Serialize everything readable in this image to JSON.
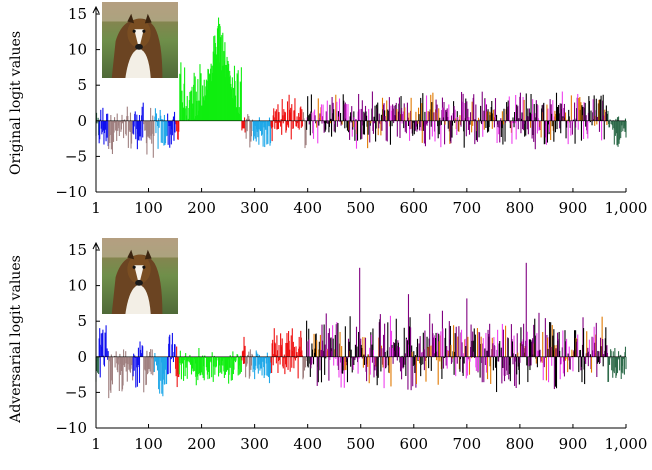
{
  "chart_data": [
    {
      "type": "bar",
      "ylabel": "Original logit values",
      "xlim": [
        1,
        1000
      ],
      "ylim": [
        -10,
        15
      ],
      "x_ticks": [
        1,
        100,
        200,
        300,
        400,
        500,
        600,
        700,
        800,
        900,
        1000
      ],
      "x_tick_labels": [
        "1",
        "100",
        "200",
        "300",
        "400",
        "500",
        "600",
        "700",
        "800",
        "900",
        "1,000"
      ],
      "y_ticks": [
        -10,
        -5,
        0,
        5,
        10,
        15
      ],
      "y_tick_labels": [
        "−10",
        "−5",
        "0",
        "5",
        "10",
        "15"
      ],
      "grid": false,
      "inset_image": "collie-dog-photo",
      "segments": [
        {
          "x_start": 1,
          "x_end": 6,
          "color": "#2e6b4a",
          "amplitude": 3,
          "bias": -1.2
        },
        {
          "x_start": 7,
          "x_end": 24,
          "color": "#1010ee",
          "amplitude": 4,
          "bias": -1.0
        },
        {
          "x_start": 25,
          "x_end": 70,
          "color": "#a08080",
          "amplitude": 4,
          "bias": -1.5
        },
        {
          "x_start": 71,
          "x_end": 90,
          "color": "#1010ee",
          "amplitude": 5,
          "bias": -1.0
        },
        {
          "x_start": 91,
          "x_end": 110,
          "color": "#a08080",
          "amplitude": 4,
          "bias": -1.5
        },
        {
          "x_start": 111,
          "x_end": 135,
          "color": "#20a8e8",
          "amplitude": 4,
          "bias": -1.5
        },
        {
          "x_start": 136,
          "x_end": 150,
          "color": "#1010ee",
          "amplitude": 4,
          "bias": -1.5
        },
        {
          "x_start": 151,
          "x_end": 157,
          "color": "#ee1010",
          "amplitude": 4,
          "bias": -1.5
        },
        {
          "x_start": 158,
          "x_end": 275,
          "color": "#10ee10",
          "amplitude": 6,
          "bias": 3.0,
          "peak_at": 232,
          "peak_value": 14.5
        },
        {
          "x_start": 276,
          "x_end": 282,
          "color": "#ee1010",
          "amplitude": 3,
          "bias": 0
        },
        {
          "x_start": 283,
          "x_end": 296,
          "color": "#a08080",
          "amplitude": 3,
          "bias": -1.0
        },
        {
          "x_start": 297,
          "x_end": 330,
          "color": "#20a8e8",
          "amplitude": 3,
          "bias": -1.5
        },
        {
          "x_start": 331,
          "x_end": 390,
          "color": "#ee1010",
          "amplitude": 4,
          "bias": 0.5
        },
        {
          "x_start": 391,
          "x_end": 397,
          "color": "#a08080",
          "amplitude": 3,
          "bias": -1.5
        },
        {
          "x_start": 398,
          "x_end": 965,
          "color": "mixed",
          "amplitude": 4.5,
          "bias": 0.2,
          "palette": [
            "#000000",
            "#800080",
            "#e07800",
            "#ee40ee",
            "#800080",
            "#000000"
          ]
        },
        {
          "x_start": 966,
          "x_end": 1000,
          "color": "#2e6b4a",
          "amplitude": 3,
          "bias": -1.0
        }
      ]
    },
    {
      "type": "bar",
      "ylabel": "Adversarial logit values",
      "xlim": [
        1,
        1000
      ],
      "ylim": [
        -10,
        15
      ],
      "x_ticks": [
        1,
        100,
        200,
        300,
        400,
        500,
        600,
        700,
        800,
        900,
        1000
      ],
      "x_tick_labels": [
        "1",
        "100",
        "200",
        "300",
        "400",
        "500",
        "600",
        "700",
        "800",
        "900",
        "1,000"
      ],
      "y_ticks": [
        -10,
        -5,
        0,
        5,
        10,
        15
      ],
      "y_tick_labels": [
        "−10",
        "−5",
        "0",
        "5",
        "10",
        "15"
      ],
      "grid": false,
      "inset_image": "collie-dog-photo",
      "segments": [
        {
          "x_start": 1,
          "x_end": 6,
          "color": "#2e6b4a",
          "amplitude": 3,
          "bias": -1.2
        },
        {
          "x_start": 7,
          "x_end": 24,
          "color": "#1010ee",
          "amplitude": 4,
          "bias": 1.0
        },
        {
          "x_start": 25,
          "x_end": 70,
          "color": "#a08080",
          "amplitude": 4,
          "bias": -2.0
        },
        {
          "x_start": 71,
          "x_end": 90,
          "color": "#1010ee",
          "amplitude": 5,
          "bias": 0.5
        },
        {
          "x_start": 91,
          "x_end": 110,
          "color": "#a08080",
          "amplitude": 4,
          "bias": -2.0
        },
        {
          "x_start": 111,
          "x_end": 135,
          "color": "#20a8e8",
          "amplitude": 5,
          "bias": -2.0
        },
        {
          "x_start": 136,
          "x_end": 150,
          "color": "#1010ee",
          "amplitude": 4,
          "bias": 0.5
        },
        {
          "x_start": 151,
          "x_end": 157,
          "color": "#ee1010",
          "amplitude": 4,
          "bias": -1.5
        },
        {
          "x_start": 158,
          "x_end": 275,
          "color": "#10ee10",
          "amplitude": 3,
          "bias": -1.5
        },
        {
          "x_start": 276,
          "x_end": 282,
          "color": "#ee1010",
          "amplitude": 3,
          "bias": 0.5
        },
        {
          "x_start": 283,
          "x_end": 296,
          "color": "#a08080",
          "amplitude": 3,
          "bias": -1.0
        },
        {
          "x_start": 297,
          "x_end": 330,
          "color": "#20a8e8",
          "amplitude": 3,
          "bias": -1.5
        },
        {
          "x_start": 331,
          "x_end": 390,
          "color": "#ee1010",
          "amplitude": 4,
          "bias": 0.5
        },
        {
          "x_start": 391,
          "x_end": 397,
          "color": "#a08080",
          "amplitude": 3,
          "bias": -1.5
        },
        {
          "x_start": 398,
          "x_end": 965,
          "color": "mixed",
          "amplitude": 6,
          "bias": 0.8,
          "palette": [
            "#000000",
            "#800080",
            "#e07800",
            "#ee40ee",
            "#800080",
            "#000000"
          ],
          "spikes": [
            {
              "x": 498,
              "value": 12.5
            },
            {
              "x": 812,
              "value": 13.2
            },
            {
              "x": 590,
              "value": 8.8
            },
            {
              "x": 700,
              "value": 8.2
            }
          ]
        },
        {
          "x_start": 966,
          "x_end": 1000,
          "color": "#2e6b4a",
          "amplitude": 3,
          "bias": -1.0
        }
      ]
    }
  ]
}
